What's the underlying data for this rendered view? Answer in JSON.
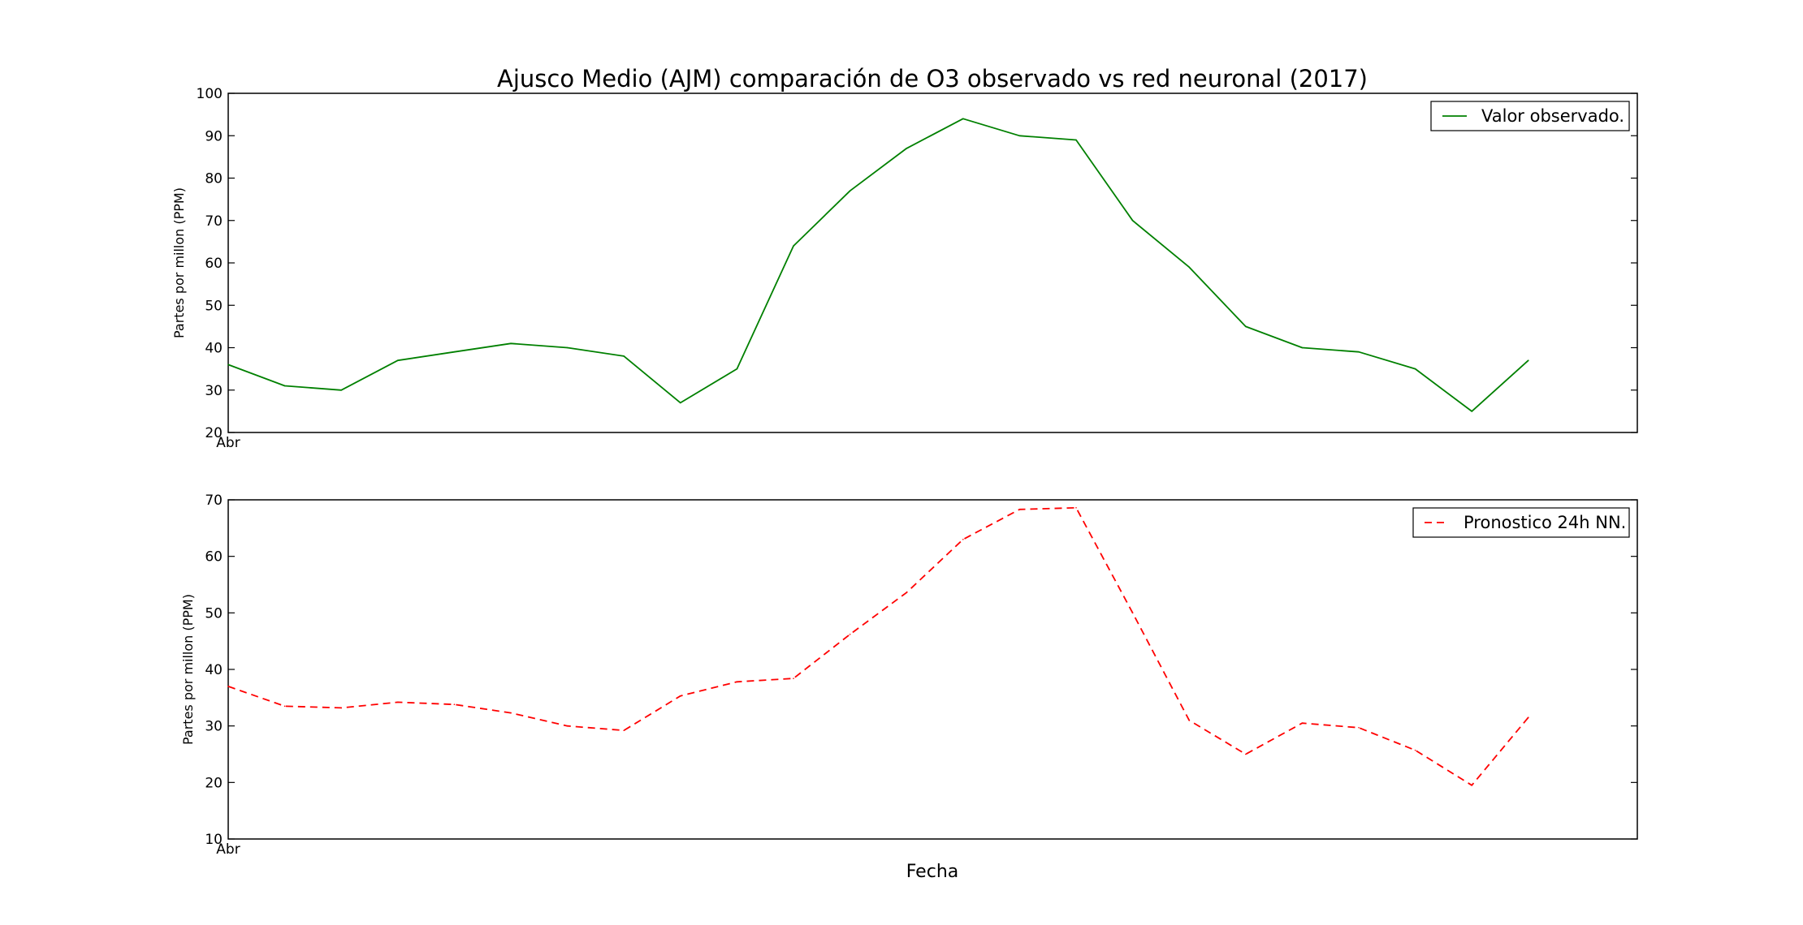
{
  "title": "Ajusco Medio (AJM) comparación de O3 observado vs red neuronal (2017)",
  "xlabel": "Fecha",
  "chart_data": [
    {
      "type": "line",
      "ylabel": "Partes por millon (PPM)",
      "ylim": [
        20,
        100
      ],
      "yticks": [
        "20",
        "30",
        "40",
        "50",
        "60",
        "70",
        "80",
        "90",
        "100"
      ],
      "x_tick_label": "Abr",
      "legend": "top-right",
      "series": [
        {
          "name": "Valor observado.",
          "color": "#008000",
          "dash": "solid",
          "values": [
            36,
            31,
            30,
            37,
            39,
            41,
            40,
            38,
            27,
            35,
            64,
            77,
            87,
            94,
            90,
            89,
            70,
            59,
            45,
            40,
            39,
            35,
            25,
            37
          ]
        }
      ]
    },
    {
      "type": "line",
      "ylabel": "Partes por millon (PPM)",
      "ylim": [
        10,
        70
      ],
      "yticks": [
        "10",
        "20",
        "30",
        "40",
        "50",
        "60",
        "70"
      ],
      "x_tick_label": "Abr",
      "legend": "top-right",
      "series": [
        {
          "name": "Pronostico 24h NN.",
          "color": "#ff0000",
          "dash": "dashed",
          "values": [
            37,
            33.5,
            33.2,
            34.2,
            33.8,
            32.3,
            30,
            29.2,
            35.3,
            37.8,
            38.4,
            46.2,
            53.6,
            63,
            68.3,
            68.6,
            50,
            31,
            25,
            30.5,
            29.7,
            25.7,
            19.5,
            31.5
          ]
        }
      ]
    }
  ]
}
